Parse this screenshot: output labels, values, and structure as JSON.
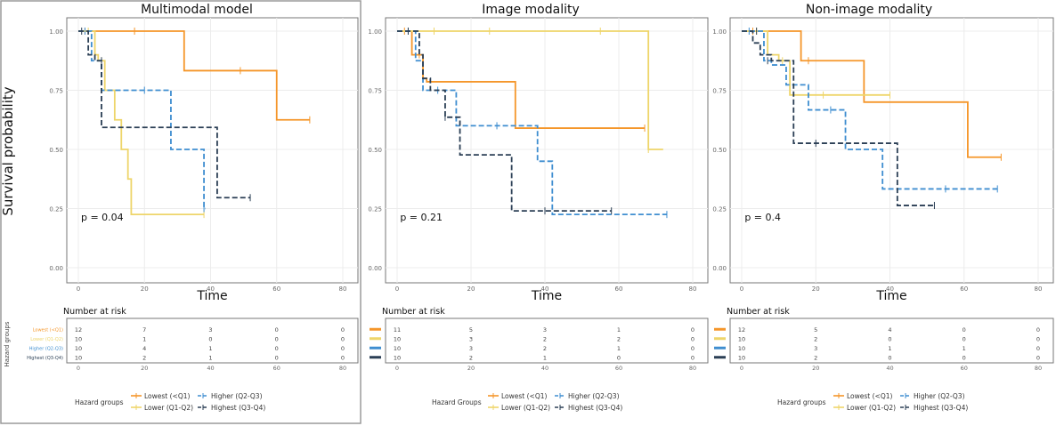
{
  "figure": {
    "ylabel": "Survival probability",
    "risk_ylabel": "Hazard groups"
  },
  "chart_data": [
    {
      "type": "line",
      "title": "Multimodal model",
      "xlabel": "Time",
      "ylabel": "Survival probability",
      "xlim": [
        0,
        80
      ],
      "ylim": [
        0,
        1
      ],
      "x_ticks": [
        "0",
        "20",
        "40",
        "60",
        "80"
      ],
      "y_ticks": [
        "0.00",
        "0.25",
        "0.50",
        "0.75",
        "1.00"
      ],
      "grid": true,
      "pvalue": "p = 0.04",
      "legend_title": "Hazard groups",
      "series": [
        {
          "name": "Lowest (<Q1)",
          "color": "#f5962a",
          "dash": "solid",
          "x": [
            0,
            32,
            60,
            70
          ],
          "y": [
            1.0,
            0.833,
            0.625,
            0.625
          ],
          "censor": [
            [
              2,
              1.0
            ],
            [
              17,
              1.0
            ],
            [
              49,
              0.833
            ],
            [
              70,
              0.625
            ]
          ]
        },
        {
          "name": "Lower (Q1-Q2)",
          "color": "#eed56a",
          "dash": "solid",
          "x": [
            0,
            5,
            6,
            8,
            11,
            13,
            15,
            16,
            38
          ],
          "y": [
            1.0,
            0.9,
            0.875,
            0.75,
            0.625,
            0.5,
            0.375,
            0.225,
            0.225
          ],
          "censor": [
            [
              3,
              1.0
            ],
            [
              7,
              0.875
            ],
            [
              38,
              0.225
            ]
          ]
        },
        {
          "name": "Higher (Q2-Q3)",
          "color": "#3f8ed0",
          "dash": "dashed",
          "x": [
            0,
            4,
            7,
            28,
            38,
            38.5
          ],
          "y": [
            1.0,
            0.875,
            0.75,
            0.5,
            0.25,
            0.25
          ],
          "censor": [
            [
              2,
              1.0
            ],
            [
              20,
              0.75
            ],
            [
              38,
              0.25
            ]
          ]
        },
        {
          "name": "Highest (Q3-Q4)",
          "color": "#2b3f55",
          "dash": "dashed",
          "x": [
            0,
            3,
            5,
            7,
            42,
            52
          ],
          "y": [
            1.0,
            0.9,
            0.875,
            0.593,
            0.296,
            0.296
          ],
          "censor": [
            [
              1,
              1.0
            ],
            [
              7,
              0.875
            ],
            [
              52,
              0.296
            ]
          ]
        }
      ],
      "risk_table": {
        "title": "Number at risk",
        "groups": [
          "Lowest (<Q1)",
          "Lower (Q1-Q2)",
          "Higher (Q2-Q3)",
          "Highest (Q3-Q4)"
        ],
        "rows": [
          [
            "12",
            "7",
            "3",
            "0",
            "0"
          ],
          [
            "10",
            "1",
            "0",
            "0",
            "0"
          ],
          [
            "10",
            "4",
            "1",
            "0",
            "0"
          ],
          [
            "10",
            "2",
            "1",
            "0",
            "0"
          ]
        ],
        "x_ticks": [
          "0",
          "20",
          "40",
          "60",
          "80"
        ]
      }
    },
    {
      "type": "line",
      "title": "Image modality",
      "xlabel": "Time",
      "ylabel": "",
      "xlim": [
        0,
        80
      ],
      "ylim": [
        0,
        1
      ],
      "x_ticks": [
        "0",
        "20",
        "40",
        "60",
        "80"
      ],
      "y_ticks": [
        "0.00",
        "0.25",
        "0.50",
        "0.75",
        "1.00"
      ],
      "grid": true,
      "pvalue": "p = 0.21",
      "legend_title": "Hazard Groups",
      "series": [
        {
          "name": "Lowest (<Q1)",
          "color": "#f5962a",
          "dash": "solid",
          "x": [
            0,
            4,
            7,
            8,
            32,
            67
          ],
          "y": [
            1.0,
            0.9,
            0.8,
            0.786,
            0.59,
            0.59
          ],
          "censor": [
            [
              2,
              1.0
            ],
            [
              6,
              0.9
            ],
            [
              67,
              0.59
            ]
          ]
        },
        {
          "name": "Lower (Q1-Q2)",
          "color": "#eed56a",
          "dash": "solid",
          "x": [
            0,
            67,
            68,
            72
          ],
          "y": [
            1.0,
            1.0,
            0.5,
            0.5
          ],
          "censor": [
            [
              10,
              1.0
            ],
            [
              25,
              1.0
            ],
            [
              55,
              1.0
            ],
            [
              68,
              0.5
            ]
          ]
        },
        {
          "name": "Higher (Q2-Q3)",
          "color": "#3f8ed0",
          "dash": "dashed",
          "x": [
            0,
            5,
            7,
            11,
            16,
            38,
            42,
            73
          ],
          "y": [
            1.0,
            0.875,
            0.75,
            0.75,
            0.6,
            0.45,
            0.225,
            0.225
          ],
          "censor": [
            [
              3,
              1.0
            ],
            [
              11,
              0.75
            ],
            [
              27,
              0.6
            ],
            [
              73,
              0.225
            ]
          ]
        },
        {
          "name": "Highest (Q3-Q4)",
          "color": "#2b3f55",
          "dash": "dashed",
          "x": [
            0,
            6,
            7,
            9,
            13,
            17,
            31,
            58
          ],
          "y": [
            1.0,
            0.9,
            0.8,
            0.75,
            0.636,
            0.477,
            0.24,
            0.24
          ],
          "censor": [
            [
              3,
              1.0
            ],
            [
              13,
              0.636
            ],
            [
              40,
              0.24
            ],
            [
              58,
              0.24
            ]
          ]
        }
      ],
      "risk_table": {
        "title": "Number at risk",
        "groups": [
          "Lowest (<Q1)",
          "Lower (Q1-Q2)",
          "Higher (Q2-Q3)",
          "Highest (Q3-Q4)"
        ],
        "rows": [
          [
            "11",
            "5",
            "3",
            "1",
            "0"
          ],
          [
            "10",
            "3",
            "2",
            "2",
            "0"
          ],
          [
            "10",
            "3",
            "2",
            "1",
            "0"
          ],
          [
            "10",
            "2",
            "1",
            "0",
            "0"
          ]
        ],
        "x_ticks": [
          "0",
          "20",
          "40",
          "60",
          "80"
        ]
      }
    },
    {
      "type": "line",
      "title": "Non-image modality",
      "xlabel": "Time",
      "ylabel": "",
      "xlim": [
        0,
        80
      ],
      "ylim": [
        0,
        1
      ],
      "x_ticks": [
        "0",
        "20",
        "40",
        "60",
        "80"
      ],
      "y_ticks": [
        "0.00",
        "0.25",
        "0.50",
        "0.75",
        "1.00"
      ],
      "grid": true,
      "pvalue": "p = 0.4",
      "legend_title": "Hazard groups",
      "series": [
        {
          "name": "Lowest (<Q1)",
          "color": "#f5962a",
          "dash": "solid",
          "x": [
            0,
            16,
            33,
            61,
            70
          ],
          "y": [
            1.0,
            0.875,
            0.7,
            0.467,
            0.467
          ],
          "censor": [
            [
              3,
              1.0
            ],
            [
              18,
              0.875
            ],
            [
              70,
              0.467
            ]
          ]
        },
        {
          "name": "Lower (Q1-Q2)",
          "color": "#eed56a",
          "dash": "solid",
          "x": [
            0,
            7,
            10,
            13,
            40
          ],
          "y": [
            1.0,
            0.9,
            0.875,
            0.73,
            0.73
          ],
          "censor": [
            [
              4,
              1.0
            ],
            [
              11,
              0.875
            ],
            [
              22,
              0.73
            ],
            [
              40,
              0.73
            ]
          ]
        },
        {
          "name": "Higher (Q2-Q3)",
          "color": "#3f8ed0",
          "dash": "dashed",
          "x": [
            0,
            6,
            8,
            12,
            18,
            28,
            38,
            69
          ],
          "y": [
            1.0,
            0.875,
            0.857,
            0.773,
            0.667,
            0.5,
            0.333,
            0.333
          ],
          "censor": [
            [
              2,
              1.0
            ],
            [
              24,
              0.667
            ],
            [
              55,
              0.333
            ],
            [
              69,
              0.333
            ]
          ]
        },
        {
          "name": "Highest (Q3-Q4)",
          "color": "#2b3f55",
          "dash": "dashed",
          "x": [
            0,
            3,
            5,
            8,
            14,
            41,
            42,
            52
          ],
          "y": [
            1.0,
            0.95,
            0.9,
            0.875,
            0.526,
            0.526,
            0.263,
            0.263
          ],
          "censor": [
            [
              4,
              1.0
            ],
            [
              7,
              0.875
            ],
            [
              20,
              0.526
            ],
            [
              52,
              0.263
            ]
          ]
        }
      ],
      "risk_table": {
        "title": "Number at risk",
        "groups": [
          "Lowest (<Q1)",
          "Lower (Q1-Q2)",
          "Higher (Q2-Q3)",
          "Highest (Q3-Q4)"
        ],
        "rows": [
          [
            "12",
            "5",
            "4",
            "0",
            "0"
          ],
          [
            "10",
            "2",
            "0",
            "0",
            "0"
          ],
          [
            "10",
            "3",
            "1",
            "1",
            "0"
          ],
          [
            "10",
            "2",
            "0",
            "0",
            "0"
          ]
        ],
        "x_ticks": [
          "0",
          "20",
          "40",
          "60",
          "80"
        ]
      }
    }
  ]
}
